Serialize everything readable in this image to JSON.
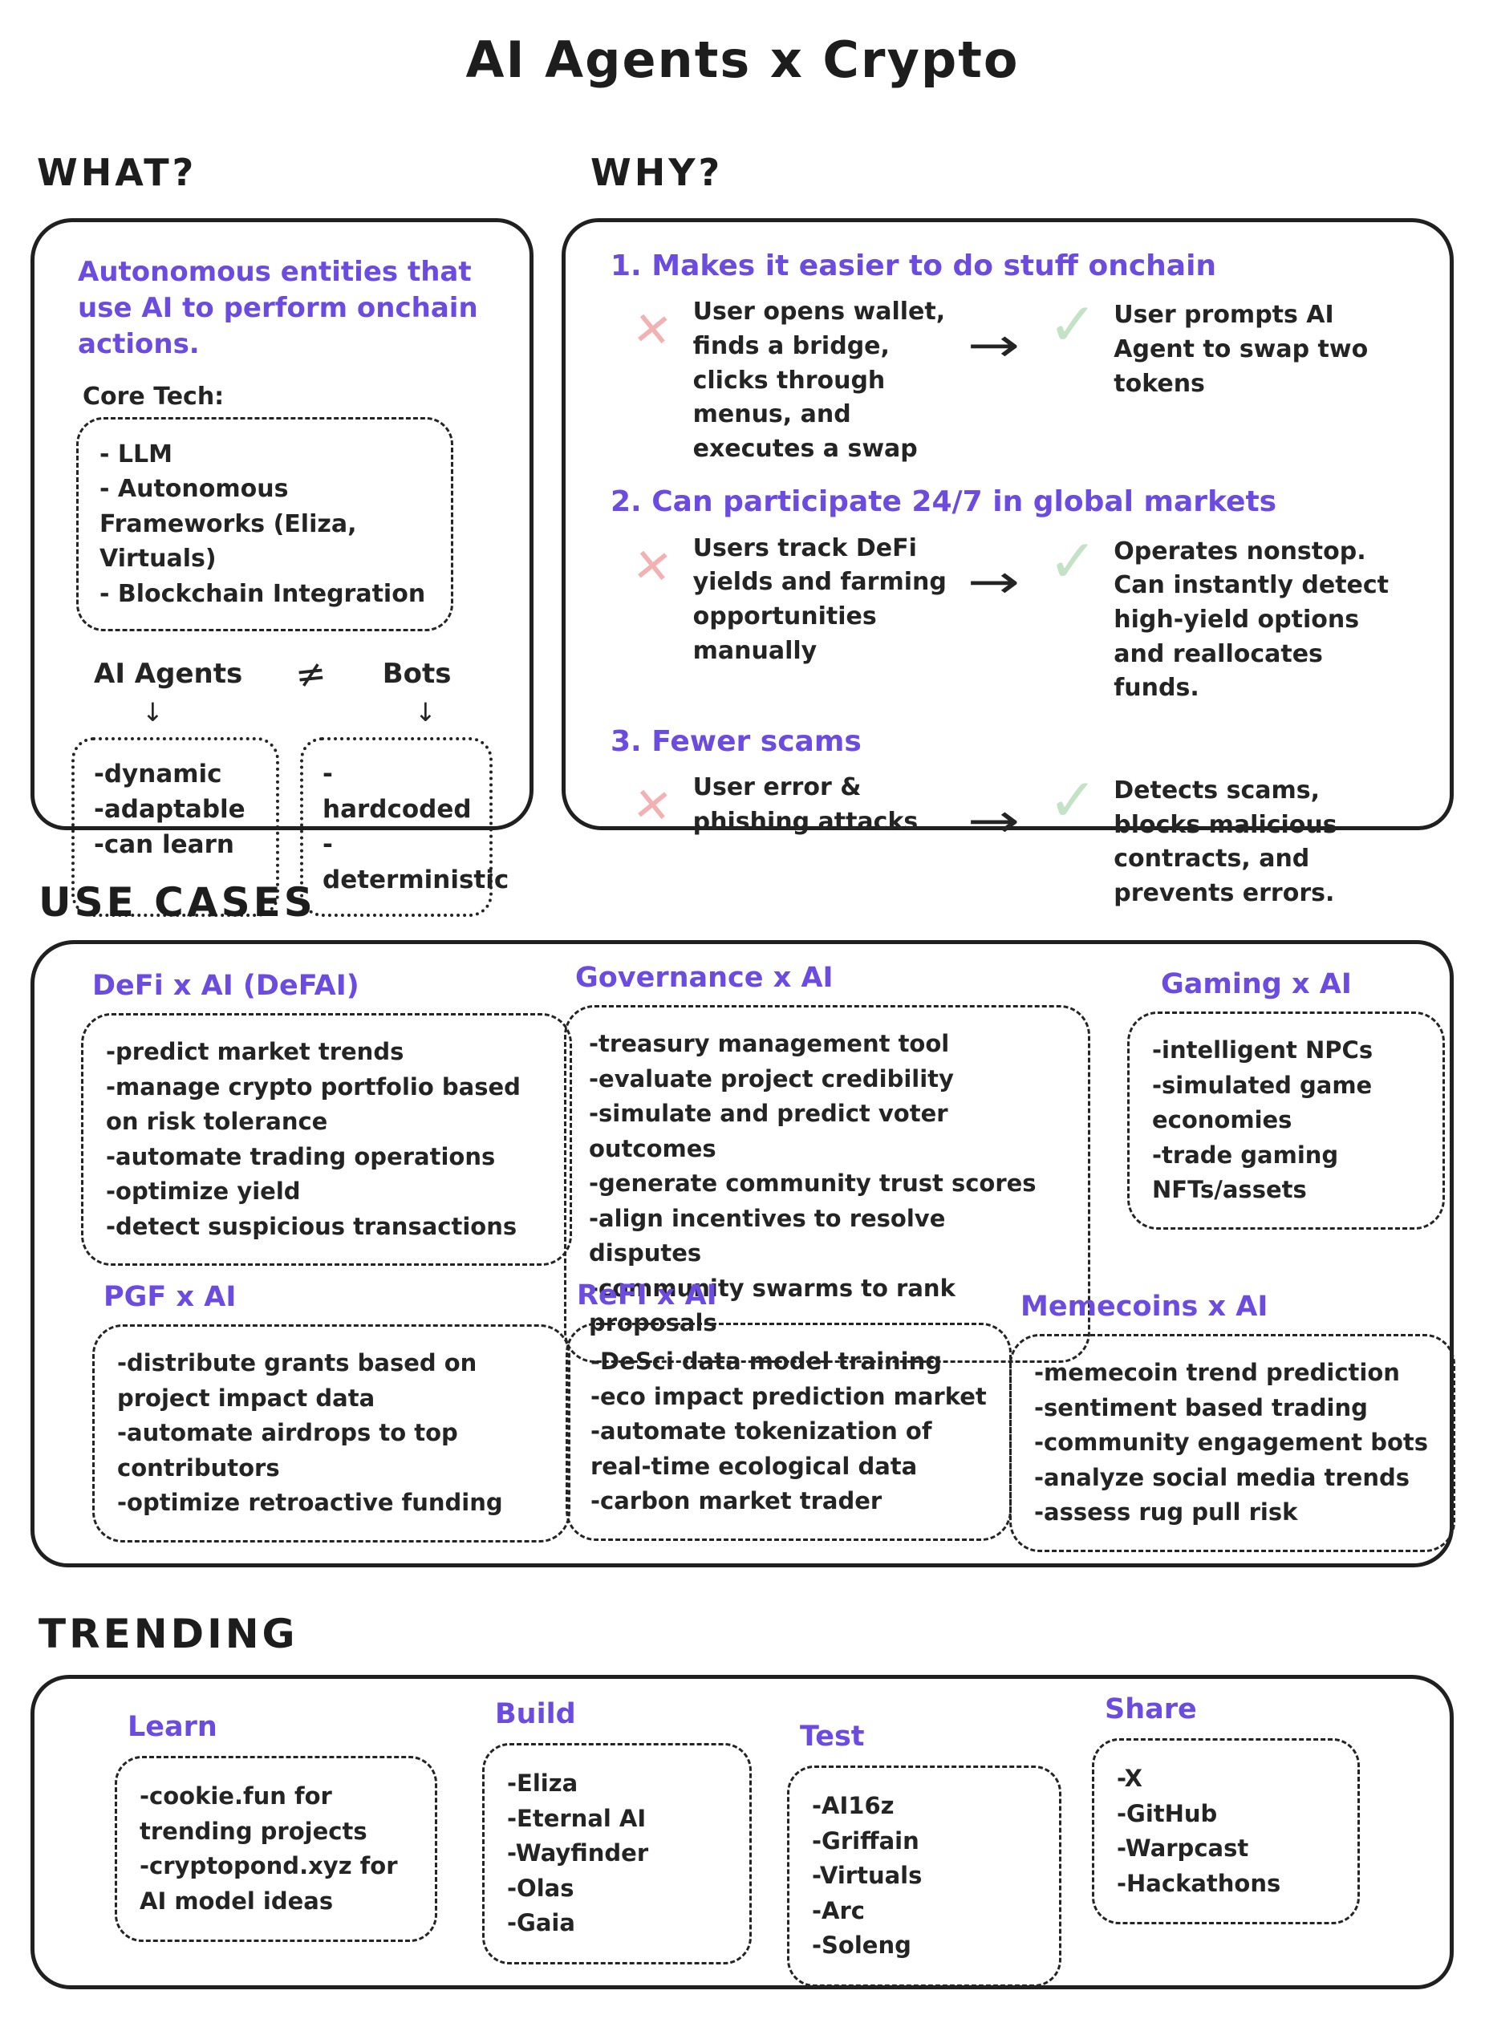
{
  "title": "AI Agents x Crypto",
  "colors": {
    "accent_purple": "#6b4be0",
    "cross_pink": "#f2b1b3",
    "check_green": "#c3e2c6",
    "ink": "#242424"
  },
  "icons": {
    "cross": "✕",
    "check": "✓",
    "arrow_right": "→",
    "arrow_down": "↓"
  },
  "what": {
    "header": "WHAT?",
    "description": "Autonomous entities that use AI to perform onchain actions.",
    "core_tech_label": "Core Tech:",
    "core_tech_items": [
      "- LLM",
      "- Autonomous Frameworks (Eliza, Virtuals)",
      "- Blockchain Integration"
    ],
    "comparison": {
      "left_label": "AI Agents",
      "operator": "≠",
      "right_label": "Bots",
      "left_items": [
        "-dynamic",
        "-adaptable",
        "-can learn"
      ],
      "right_items": [
        "-hardcoded",
        "-deterministic"
      ]
    }
  },
  "why": {
    "header": "WHY?",
    "points": [
      {
        "heading": "1. Makes it easier to do stuff onchain",
        "bad": "User opens wallet, finds a bridge, clicks through menus, and executes a swap",
        "good": "User prompts AI Agent to swap two tokens"
      },
      {
        "heading": "2. Can participate 24/7 in global markets",
        "bad": "Users track DeFi yields and farming opportunities manually",
        "good": "Operates nonstop. Can instantly detect high-yield options and reallocates funds."
      },
      {
        "heading": "3. Fewer scams",
        "bad": "User error & phishing attacks",
        "good": "Detects scams, blocks malicious contracts, and prevents errors."
      }
    ]
  },
  "use_cases": {
    "header": "USE CASES",
    "groups": [
      {
        "heading": "DeFi x AI (DeFAI)",
        "items": [
          "-predict market trends",
          "-manage crypto portfolio based on risk tolerance",
          "-automate trading operations",
          "-optimize yield",
          "-detect suspicious transactions"
        ]
      },
      {
        "heading": "Governance x AI",
        "items": [
          "-treasury management tool",
          "-evaluate project credibility",
          "-simulate and predict voter outcomes",
          "-generate community trust scores",
          "-align incentives to resolve disputes",
          "-community swarms to rank proposals"
        ]
      },
      {
        "heading": "Gaming x AI",
        "items": [
          "-intelligent NPCs",
          "-simulated game economies",
          "-trade gaming NFTs/assets"
        ]
      },
      {
        "heading": "PGF x AI",
        "items": [
          "-distribute grants based on project impact data",
          "-automate airdrops to top contributors",
          "-optimize retroactive funding"
        ]
      },
      {
        "heading": "ReFI x AI",
        "items": [
          "-DeSci data model training",
          "-eco impact prediction market",
          "-automate tokenization of real-time ecological data",
          "-carbon market trader"
        ]
      },
      {
        "heading": "Memecoins x AI",
        "items": [
          "-memecoin trend prediction",
          "-sentiment based trading",
          "-community engagement bots",
          "-analyze social media trends",
          "-assess rug pull risk"
        ]
      }
    ]
  },
  "trending": {
    "header": "TRENDING",
    "groups": [
      {
        "heading": "Learn",
        "items": [
          "-cookie.fun for trending projects",
          "-cryptopond.xyz for AI model ideas"
        ]
      },
      {
        "heading": "Build",
        "items": [
          "-Eliza",
          "-Eternal AI",
          "-Wayfinder",
          "-Olas",
          "-Gaia"
        ]
      },
      {
        "heading": "Test",
        "items": [
          "-AI16z",
          "-Griffain",
          "-Virtuals",
          "-Arc",
          "-Soleng"
        ]
      },
      {
        "heading": "Share",
        "items": [
          "-X",
          "-GitHub",
          "-Warpcast",
          "-Hackathons"
        ]
      }
    ]
  }
}
